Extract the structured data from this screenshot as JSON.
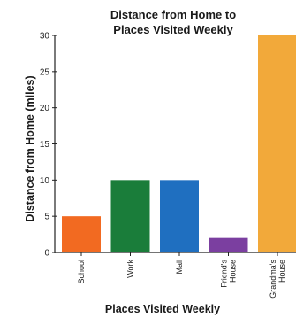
{
  "chart_data": {
    "type": "bar",
    "title": [
      "Distance from Home to",
      "Places Visited Weekly"
    ],
    "xlabel": "Places Visited Weekly",
    "ylabel": "Distance from Home (miles)",
    "ylim": [
      0,
      30
    ],
    "yticks": [
      0,
      5,
      10,
      15,
      20,
      25,
      30
    ],
    "categories": [
      [
        "School"
      ],
      [
        "Work"
      ],
      [
        "Mall"
      ],
      [
        "Friend's",
        "House"
      ],
      [
        "Grandma's",
        "House"
      ]
    ],
    "values": [
      5,
      10,
      10,
      2,
      30
    ],
    "colors": [
      "#f26a21",
      "#1a7d3a",
      "#1f6fc0",
      "#7b3fa0",
      "#f2a93a"
    ],
    "grid": false,
    "legend": "none"
  }
}
